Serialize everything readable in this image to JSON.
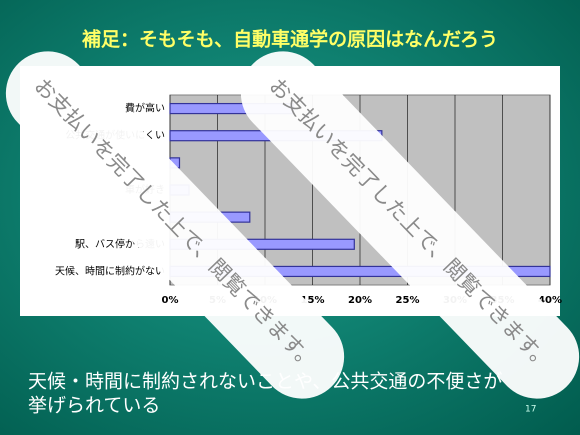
{
  "slide": {
    "title": "補足：そもそも、自動車通学の原因はなんだろう",
    "caption_lines": [
      "天候・時間に制約されないことや、公共交通の不便さが",
      "挙げられている"
    ],
    "page_number": "17",
    "watermarks": [
      "お支払いを完了した上で、閲覧できます。",
      "お支払いを完了した上で、閲覧できます。"
    ]
  },
  "chart_data": {
    "type": "hbar",
    "categories": [
      "費が高い",
      "公共交通が使いにくい",
      null,
      "車が好き",
      null,
      "駅、バス停から遠い",
      "天候、時間に制約がない"
    ],
    "values": [
      13,
      22.3,
      1,
      2,
      8.4,
      19.4,
      40
    ],
    "color": "#9999ff",
    "xlim": [
      0,
      40
    ],
    "xticks": [
      {
        "value": 0,
        "label": "0%"
      },
      {
        "value": 5,
        "label": "5%"
      },
      {
        "value": 10,
        "label": "10%"
      },
      {
        "value": 15,
        "label": "15%"
      },
      {
        "value": 20,
        "label": "20%"
      },
      {
        "value": 25,
        "label": "25%"
      },
      {
        "value": 30,
        "label": "30%"
      },
      {
        "value": 35,
        "label": "35%"
      },
      {
        "value": 40,
        "label": "40%"
      }
    ],
    "grid": true
  }
}
